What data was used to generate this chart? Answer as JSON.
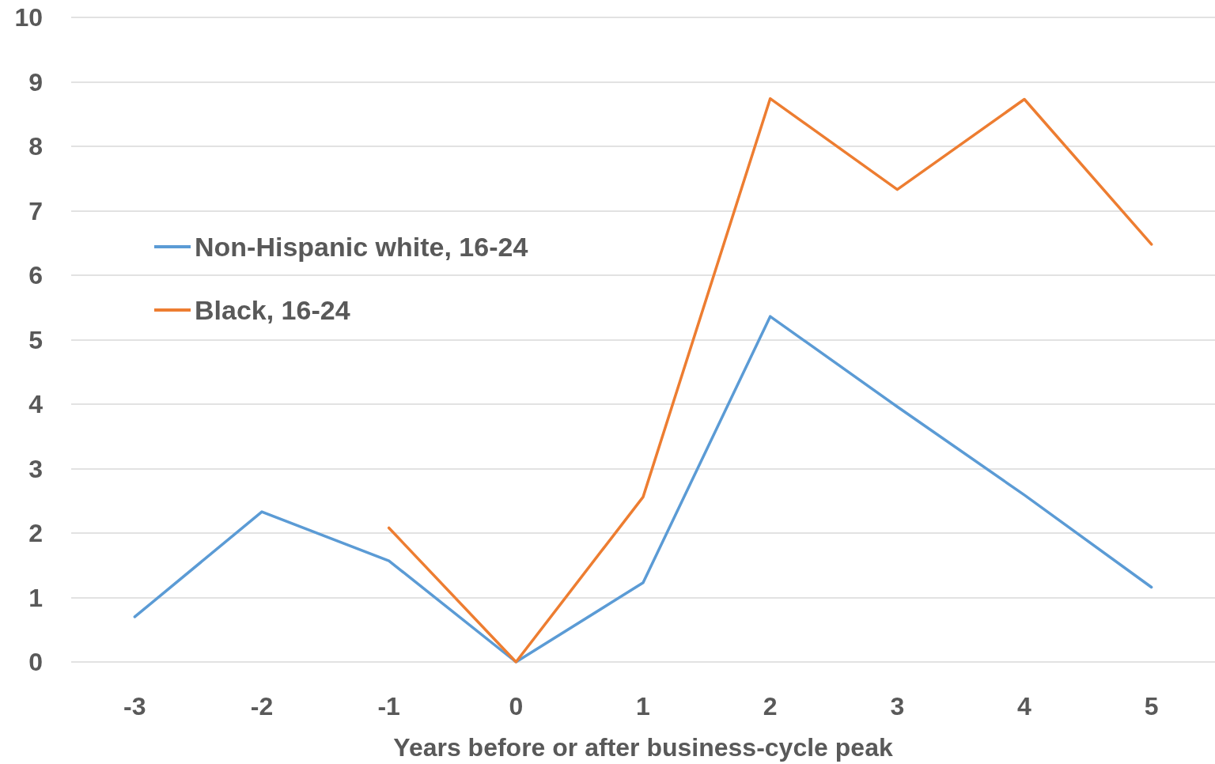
{
  "chart_data": {
    "type": "line",
    "xlabel": "Years before or after business-cycle peak",
    "categories": [
      "-3",
      "-2",
      "-1",
      "0",
      "1",
      "2",
      "3",
      "4",
      "5"
    ],
    "series": [
      {
        "name": "Non-Hispanic white, 16-24",
        "color": "#5b9bd5",
        "values": [
          0.7,
          2.33,
          1.57,
          0,
          1.23,
          5.36,
          3.96,
          2.59,
          1.16
        ]
      },
      {
        "name": "Black, 16-24",
        "color": "#ed7d31",
        "values": [
          null,
          null,
          2.08,
          0,
          2.56,
          8.74,
          7.33,
          8.73,
          6.48
        ]
      }
    ],
    "ylim": [
      0,
      10
    ],
    "yticks": [
      0,
      1,
      2,
      3,
      4,
      5,
      6,
      7,
      8,
      9,
      10
    ],
    "grid": "y",
    "legend": "left",
    "marker": "none",
    "line_style": "solid"
  }
}
